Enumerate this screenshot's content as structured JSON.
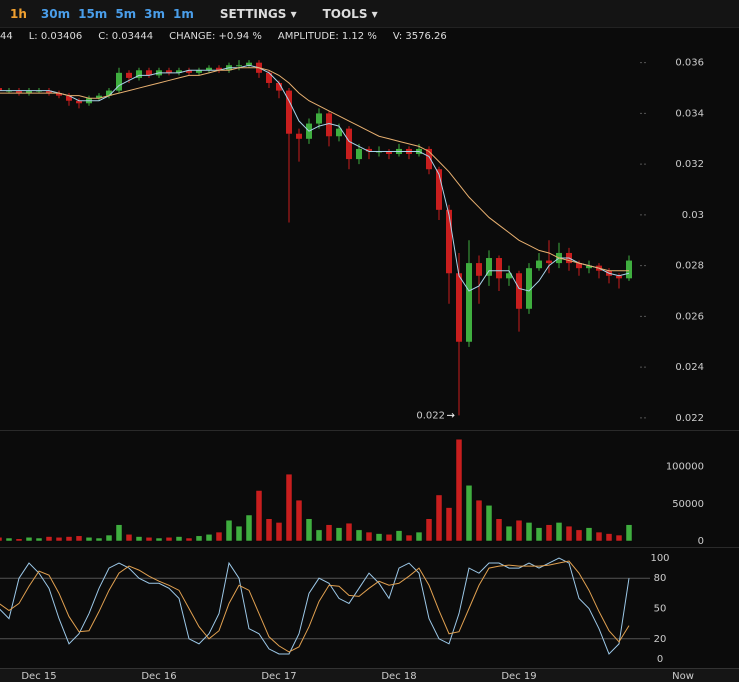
{
  "toolbar": {
    "intervals": [
      "1h",
      "30m",
      "15m",
      "5m",
      "3m",
      "1m"
    ],
    "menus": [
      "SETTINGS",
      "TOOLS"
    ]
  },
  "info": [
    "44",
    "L: 0.03406",
    "C: 0.03444",
    "CHANGE: +0.94 %",
    "AMPLITUDE: 1.12 %",
    "V: 3576.26"
  ],
  "now_label": "Now",
  "chart_data": [
    {
      "type": "candlestick",
      "up_color": "#3fae3f",
      "down_color": "#c81e1e",
      "low_marker": "0.022",
      "categories": [
        null,
        null,
        null,
        null,
        "Dec 15",
        null,
        null,
        null,
        null,
        null,
        null,
        null,
        null,
        null,
        null,
        null,
        "Dec 16",
        null,
        null,
        null,
        null,
        null,
        null,
        null,
        null,
        null,
        null,
        null,
        "Dec 17",
        null,
        null,
        null,
        null,
        null,
        null,
        null,
        null,
        null,
        null,
        null,
        "Dec 18",
        null,
        null,
        null,
        null,
        null,
        null,
        null,
        null,
        null,
        null,
        null,
        "Dec 19",
        null,
        null,
        null,
        null,
        null,
        null,
        null,
        null,
        null,
        null,
        null
      ],
      "open": [
        0.035,
        0.0349,
        0.0349,
        0.0348,
        0.0349,
        0.0349,
        0.0348,
        0.0347,
        0.0345,
        0.0344,
        0.0346,
        0.0347,
        0.0349,
        0.0356,
        0.0354,
        0.0357,
        0.0355,
        0.0357,
        0.0356,
        0.0357,
        0.0356,
        0.0357,
        0.0358,
        0.0357,
        0.0359,
        0.0359,
        0.036,
        0.0356,
        0.0352,
        0.0349,
        0.0332,
        0.033,
        0.0336,
        0.034,
        0.0331,
        0.0334,
        0.0322,
        0.0326,
        0.0325,
        0.0325,
        0.0324,
        0.0326,
        0.0324,
        0.0326,
        0.0318,
        0.0302,
        0.0277,
        0.025,
        0.0281,
        0.0276,
        0.0283,
        0.0275,
        0.0277,
        0.0263,
        0.0279,
        0.0282,
        0.0281,
        0.0285,
        0.0281,
        0.0279,
        0.028,
        0.0278,
        0.0276,
        0.0275
      ],
      "high": [
        0.0351,
        0.035,
        0.035,
        0.035,
        0.035,
        0.035,
        0.0349,
        0.0348,
        0.0346,
        0.0347,
        0.0348,
        0.035,
        0.0358,
        0.0357,
        0.0358,
        0.0358,
        0.0358,
        0.0358,
        0.0358,
        0.0358,
        0.0358,
        0.0359,
        0.0359,
        0.036,
        0.0361,
        0.0361,
        0.0361,
        0.0357,
        0.0353,
        0.035,
        0.0334,
        0.0338,
        0.0342,
        0.0341,
        0.0336,
        0.0335,
        0.0328,
        0.0327,
        0.0327,
        0.0326,
        0.0328,
        0.0327,
        0.0328,
        0.0327,
        0.0319,
        0.0304,
        0.0285,
        0.029,
        0.0284,
        0.0286,
        0.0284,
        0.028,
        0.0278,
        0.0281,
        0.0285,
        0.029,
        0.0289,
        0.0287,
        0.0282,
        0.0282,
        0.0281,
        0.0279,
        0.0277,
        0.0284
      ],
      "low": [
        0.0348,
        0.0348,
        0.0347,
        0.0347,
        0.0348,
        0.0347,
        0.0346,
        0.0343,
        0.0342,
        0.0343,
        0.0345,
        0.0346,
        0.0348,
        0.0352,
        0.0353,
        0.0354,
        0.0354,
        0.0355,
        0.0355,
        0.0355,
        0.0355,
        0.0356,
        0.0356,
        0.0356,
        0.0357,
        0.0358,
        0.0354,
        0.035,
        0.0346,
        0.0297,
        0.0321,
        0.0328,
        0.0334,
        0.0327,
        0.0329,
        0.0318,
        0.032,
        0.0322,
        0.0323,
        0.0322,
        0.0323,
        0.0322,
        0.0323,
        0.0316,
        0.0298,
        0.0265,
        0.0221,
        0.0248,
        0.0265,
        0.0272,
        0.027,
        0.0272,
        0.0254,
        0.0261,
        0.0278,
        0.0277,
        0.0279,
        0.0278,
        0.0276,
        0.0277,
        0.0275,
        0.0273,
        0.0271,
        0.0274
      ],
      "close": [
        0.0349,
        0.0349,
        0.0348,
        0.0349,
        0.0349,
        0.0348,
        0.0347,
        0.0345,
        0.0344,
        0.0346,
        0.0347,
        0.0349,
        0.0356,
        0.0354,
        0.0357,
        0.0355,
        0.0357,
        0.0356,
        0.0357,
        0.0356,
        0.0357,
        0.0358,
        0.0357,
        0.0359,
        0.0359,
        0.036,
        0.0356,
        0.0352,
        0.0349,
        0.0332,
        0.033,
        0.0336,
        0.034,
        0.0331,
        0.0334,
        0.0322,
        0.0326,
        0.0325,
        0.0325,
        0.0324,
        0.0326,
        0.0324,
        0.0326,
        0.0318,
        0.0302,
        0.0277,
        0.025,
        0.0281,
        0.0276,
        0.0283,
        0.0275,
        0.0277,
        0.0263,
        0.0279,
        0.0282,
        0.0281,
        0.0285,
        0.0281,
        0.0279,
        0.028,
        0.0278,
        0.0276,
        0.0275,
        0.0282
      ],
      "series": [
        {
          "color": "#a9d3ea",
          "values": [
            0.0349,
            0.0349,
            0.0349,
            0.0349,
            0.0349,
            0.0349,
            0.0348,
            0.0347,
            0.0345,
            0.0345,
            0.0345,
            0.0347,
            0.0351,
            0.0353,
            0.0355,
            0.0355,
            0.0356,
            0.0356,
            0.0356,
            0.0357,
            0.0357,
            0.0357,
            0.0357,
            0.0358,
            0.0358,
            0.0359,
            0.0358,
            0.0356,
            0.0352,
            0.0345,
            0.0337,
            0.0333,
            0.0335,
            0.0336,
            0.0335,
            0.0329,
            0.0327,
            0.0325,
            0.0325,
            0.0325,
            0.0325,
            0.0325,
            0.0325,
            0.0323,
            0.0316,
            0.03,
            0.0276,
            0.027,
            0.0272,
            0.0278,
            0.0278,
            0.0278,
            0.0271,
            0.027,
            0.0274,
            0.028,
            0.0283,
            0.0283,
            0.0281,
            0.028,
            0.0279,
            0.0277,
            0.0276,
            0.0277
          ]
        },
        {
          "color": "#e8b070",
          "values": [
            0.0348,
            0.0348,
            0.0348,
            0.0348,
            0.0348,
            0.0348,
            0.0348,
            0.0347,
            0.0347,
            0.0346,
            0.0346,
            0.0347,
            0.0348,
            0.0349,
            0.035,
            0.0351,
            0.0352,
            0.0353,
            0.0354,
            0.0355,
            0.0355,
            0.0356,
            0.0357,
            0.0357,
            0.0358,
            0.0358,
            0.0358,
            0.0357,
            0.0355,
            0.0352,
            0.0348,
            0.0345,
            0.0343,
            0.0341,
            0.0339,
            0.0337,
            0.0335,
            0.0333,
            0.0331,
            0.033,
            0.0329,
            0.0328,
            0.0327,
            0.0325,
            0.0321,
            0.0317,
            0.0312,
            0.0307,
            0.0303,
            0.0299,
            0.0296,
            0.0293,
            0.029,
            0.0288,
            0.0286,
            0.0285,
            0.0283,
            0.0282,
            0.0281,
            0.028,
            0.0279,
            0.0278,
            0.0278,
            0.0278
          ]
        }
      ],
      "ylim": [
        0.0216,
        0.0365
      ],
      "yticks": [
        0.022,
        0.024,
        0.026,
        0.028,
        0.03,
        0.032,
        0.034,
        0.036
      ]
    },
    {
      "type": "bar",
      "values": [
        5000,
        4000,
        3000,
        5000,
        4000,
        6000,
        5000,
        6000,
        7000,
        5000,
        4000,
        8000,
        22000,
        9000,
        6000,
        5000,
        4000,
        5000,
        6000,
        4000,
        7000,
        9000,
        12000,
        28000,
        20000,
        35000,
        68000,
        30000,
        25000,
        90000,
        55000,
        30000,
        15000,
        22000,
        18000,
        24000,
        15000,
        12000,
        10000,
        9000,
        14000,
        8000,
        12000,
        30000,
        62000,
        45000,
        137000,
        75000,
        55000,
        48000,
        30000,
        20000,
        28000,
        25000,
        18000,
        22000,
        25000,
        20000,
        15000,
        18000,
        12000,
        10000,
        8000,
        22000
      ],
      "ylim": [
        0,
        140000
      ],
      "yticks": [
        0,
        50000,
        100000
      ]
    },
    {
      "type": "line",
      "levels": [
        20,
        80
      ],
      "series": [
        {
          "color": "#9cc8e8",
          "values": [
            50,
            40,
            80,
            95,
            85,
            70,
            40,
            15,
            25,
            45,
            70,
            90,
            95,
            90,
            80,
            75,
            75,
            70,
            60,
            20,
            15,
            25,
            45,
            95,
            80,
            30,
            25,
            10,
            5,
            5,
            25,
            65,
            80,
            75,
            60,
            55,
            70,
            85,
            75,
            60,
            90,
            95,
            85,
            40,
            20,
            15,
            45,
            90,
            85,
            95,
            95,
            90,
            90,
            95,
            90,
            95,
            100,
            95,
            60,
            50,
            30,
            5,
            15,
            80
          ]
        },
        {
          "color": "#e0a050",
          "values": [
            55,
            48,
            55,
            72,
            87,
            83,
            65,
            42,
            27,
            28,
            47,
            68,
            85,
            92,
            88,
            82,
            77,
            73,
            68,
            50,
            32,
            20,
            28,
            55,
            73,
            68,
            45,
            22,
            13,
            7,
            12,
            32,
            57,
            73,
            72,
            63,
            62,
            70,
            77,
            73,
            75,
            82,
            90,
            73,
            48,
            25,
            27,
            50,
            73,
            90,
            92,
            93,
            92,
            92,
            92,
            93,
            95,
            97,
            85,
            68,
            47,
            28,
            17,
            33
          ]
        }
      ],
      "ylim": [
        0,
        100
      ],
      "yticks": [
        0,
        20,
        50,
        80,
        100
      ]
    }
  ]
}
